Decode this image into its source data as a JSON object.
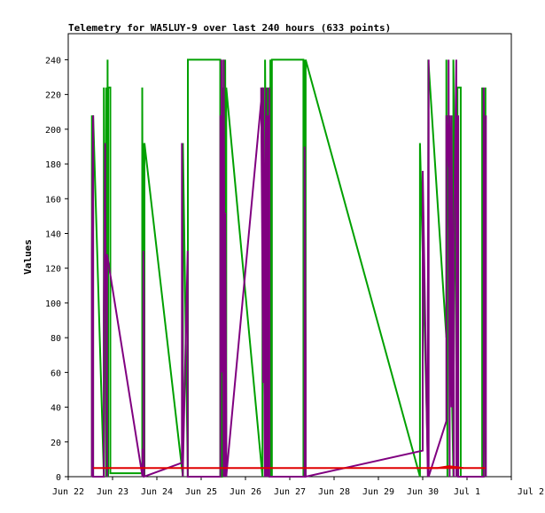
{
  "chart_data": {
    "type": "line",
    "title": "Telemetry for WA5LUY-9 over last 240 hours (633 points)",
    "xlabel": "",
    "ylabel": "Values",
    "ylim": [
      0,
      255
    ],
    "yticks": [
      0,
      20,
      40,
      60,
      80,
      100,
      120,
      140,
      160,
      180,
      200,
      220,
      240
    ],
    "xlim": [
      0,
      240
    ],
    "xtick_labels": [
      "Jun 22",
      "Jun 23",
      "Jun 24",
      "Jun 25",
      "Jun 26",
      "Jun 27",
      "Jun 28",
      "Jun 29",
      "Jun 30",
      "Jul 1",
      "Jul 2"
    ],
    "xtick_hours": [
      0,
      24,
      48,
      72,
      96,
      120,
      144,
      168,
      192,
      216,
      240
    ],
    "grid": false,
    "legend": "none",
    "series": [
      {
        "color": "#00a000",
        "x": [
          12.8,
          12.8,
          13.5,
          13.5,
          19.3,
          19.3,
          20.6,
          20.6,
          21.3,
          21.3,
          21.6,
          21.6,
          22.8,
          22.8,
          40.1,
          40.1,
          40.5,
          40.5,
          40.9,
          40.9,
          41.3,
          41.3,
          62.1,
          62.1,
          64.8,
          64.8,
          82.3,
          82.3,
          83.3,
          83.3,
          84.1,
          84.1,
          85.0,
          85.0,
          85.6,
          85.6,
          105.2,
          105.2,
          106.6,
          106.6,
          108.0,
          108.0,
          108.8,
          108.8,
          109.5,
          109.5,
          110.3,
          110.3,
          127.4,
          127.4,
          127.8,
          127.8,
          128.2,
          128.2,
          128.6,
          128.6,
          190.5,
          190.5,
          195.0,
          195.0,
          204.8,
          204.8,
          205.4,
          205.4,
          208.6,
          208.6,
          210.8,
          210.8,
          212.6,
          212.6,
          224.2,
          224.2,
          226.0,
          226.0
        ],
        "y": [
          0,
          208,
          0,
          208,
          0,
          224,
          0,
          224,
          0,
          240,
          0,
          224,
          224,
          2,
          2,
          224,
          0,
          192,
          0,
          192,
          0,
          192,
          0,
          192,
          0,
          240,
          240,
          0,
          0,
          224,
          0,
          240,
          0,
          240,
          0,
          224,
          0,
          224,
          0,
          240,
          0,
          224,
          0,
          224,
          0,
          240,
          0,
          240,
          240,
          0,
          0,
          240,
          0,
          240,
          0,
          240,
          0,
          192,
          0,
          240,
          80,
          240,
          0,
          208,
          0,
          240,
          0,
          224,
          224,
          0,
          0,
          224,
          0,
          224
        ]
      },
      {
        "color": "#800080",
        "x": [
          12.8,
          12.8,
          13.5,
          13.5,
          19.3,
          19.3,
          20.0,
          20.0,
          21.0,
          21.0,
          40.2,
          40.2,
          40.7,
          40.7,
          41.1,
          41.1,
          61.6,
          61.6,
          62.0,
          62.0,
          64.7,
          64.7,
          82.4,
          82.4,
          83.0,
          83.0,
          84.2,
          84.2,
          85.0,
          85.0,
          85.6,
          85.6,
          104.5,
          104.5,
          105.6,
          105.6,
          106.5,
          106.5,
          107.3,
          107.3,
          108.2,
          108.2,
          109.0,
          109.0,
          128.0,
          128.0,
          128.6,
          128.6,
          192.0,
          192.0,
          194.8,
          194.8,
          195.2,
          195.2,
          204.8,
          204.8,
          206.0,
          206.0,
          206.6,
          206.6,
          207.6,
          207.6,
          208.8,
          208.8,
          210.2,
          210.2,
          211.2,
          211.2,
          225.0,
          225.0,
          226.2,
          226.2
        ],
        "y": [
          0,
          128,
          208,
          0,
          0,
          96,
          192,
          160,
          0,
          128,
          0,
          16,
          0,
          130,
          98,
          0,
          8,
          192,
          16,
          0,
          130,
          0,
          0,
          208,
          60,
          240,
          0,
          240,
          0,
          152,
          32,
          0,
          216,
          224,
          54,
          224,
          0,
          160,
          224,
          0,
          208,
          0,
          224,
          0,
          0,
          190,
          64,
          0,
          15,
          176,
          0,
          100,
          240,
          0,
          32,
          208,
          178,
          240,
          0,
          208,
          40,
          208,
          0,
          128,
          240,
          0,
          208,
          0,
          0,
          224,
          0,
          208
        ]
      },
      {
        "color": "#e00000",
        "x": [
          13.5,
          214.0,
          224.0,
          226.0
        ],
        "y": [
          5,
          5,
          5,
          5
        ]
      },
      {
        "color": "#e00000",
        "x": [
          194.8,
          200.0,
          206.0,
          214.0
        ],
        "y": [
          5,
          5,
          6,
          5
        ]
      }
    ]
  }
}
